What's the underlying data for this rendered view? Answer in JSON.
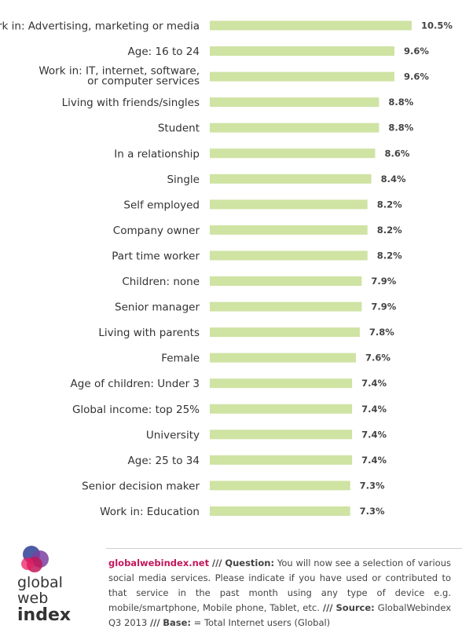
{
  "chart_data": {
    "type": "bar",
    "orientation": "horizontal",
    "categories": [
      [
        "Work in: Advertising, marketing or media"
      ],
      [
        "Age: 16 to 24"
      ],
      [
        "Work in: IT, internet, software,",
        "or computer services"
      ],
      [
        "Living with friends/singles"
      ],
      [
        "Student"
      ],
      [
        "In a relationship"
      ],
      [
        "Single"
      ],
      [
        "Self employed"
      ],
      [
        "Company owner"
      ],
      [
        "Part time worker"
      ],
      [
        "Children: none"
      ],
      [
        "Senior manager"
      ],
      [
        "Living with parents"
      ],
      [
        "Female"
      ],
      [
        "Age of children: Under 3"
      ],
      [
        "Global income: top 25%"
      ],
      [
        "University"
      ],
      [
        "Age: 25 to 34"
      ],
      [
        "Senior decision maker"
      ],
      [
        "Work in: Education"
      ]
    ],
    "values": [
      10.5,
      9.6,
      9.6,
      8.8,
      8.8,
      8.6,
      8.4,
      8.2,
      8.2,
      8.2,
      7.9,
      7.9,
      7.8,
      7.6,
      7.4,
      7.4,
      7.4,
      7.4,
      7.3,
      7.3
    ],
    "value_labels": [
      "10.5%",
      "9.6%",
      "9.6%",
      "8.8%",
      "8.8%",
      "8.6%",
      "8.4%",
      "8.2%",
      "8.2%",
      "8.2%",
      "7.9%",
      "7.9%",
      "7.8%",
      "7.6%",
      "7.4%",
      "7.4%",
      "7.4%",
      "7.4%",
      "7.3%",
      "7.3%"
    ],
    "bar_color": "#cfe3a3",
    "grid": false
  },
  "footer": {
    "site": "globalwebindex.net",
    "sep1": "///",
    "question_label": "Question:",
    "question_text": "You will now see a selection of various social media services. Please indicate if you have used or contributed to that service in the past month using any type of device e.g. mobile/smartphone, Mobile phone, Tablet, etc.",
    "sep2": "///",
    "source_label": "Source:",
    "source_text": "GlobalWebindex Q3 2013",
    "sep3": "///",
    "base_label": "Base:",
    "base_text": "= Total Internet users (Global)"
  },
  "logo": {
    "line1": "global",
    "line2": "web",
    "line3": "index",
    "colors": [
      "#3b4a9c",
      "#7b3fa0",
      "#c2185b",
      "#e91e63"
    ]
  }
}
